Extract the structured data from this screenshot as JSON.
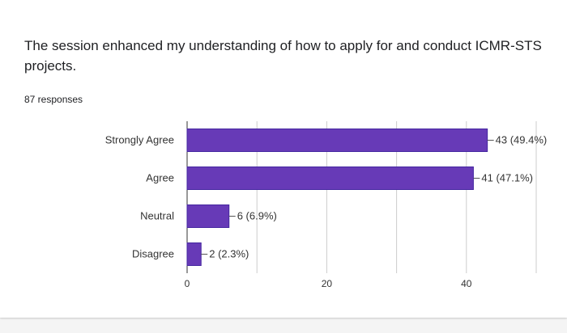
{
  "card": {
    "title": "The session enhanced my understanding of how to apply for and conduct ICMR-STS projects.",
    "responses": "87 responses"
  },
  "chart_data": {
    "type": "bar",
    "orientation": "horizontal",
    "categories": [
      "Strongly Agree",
      "Agree",
      "Neutral",
      "Disagree"
    ],
    "values": [
      43,
      41,
      6,
      2
    ],
    "data_labels": [
      "43 (49.4%)",
      "41 (47.1%)",
      "6 (6.9%)",
      "2 (2.3%)"
    ],
    "xlim": [
      0,
      50
    ],
    "xticks": [
      0,
      20,
      40
    ],
    "grid": true,
    "bar_color": "#673ab7",
    "bar_stroke": "#4527a0"
  }
}
